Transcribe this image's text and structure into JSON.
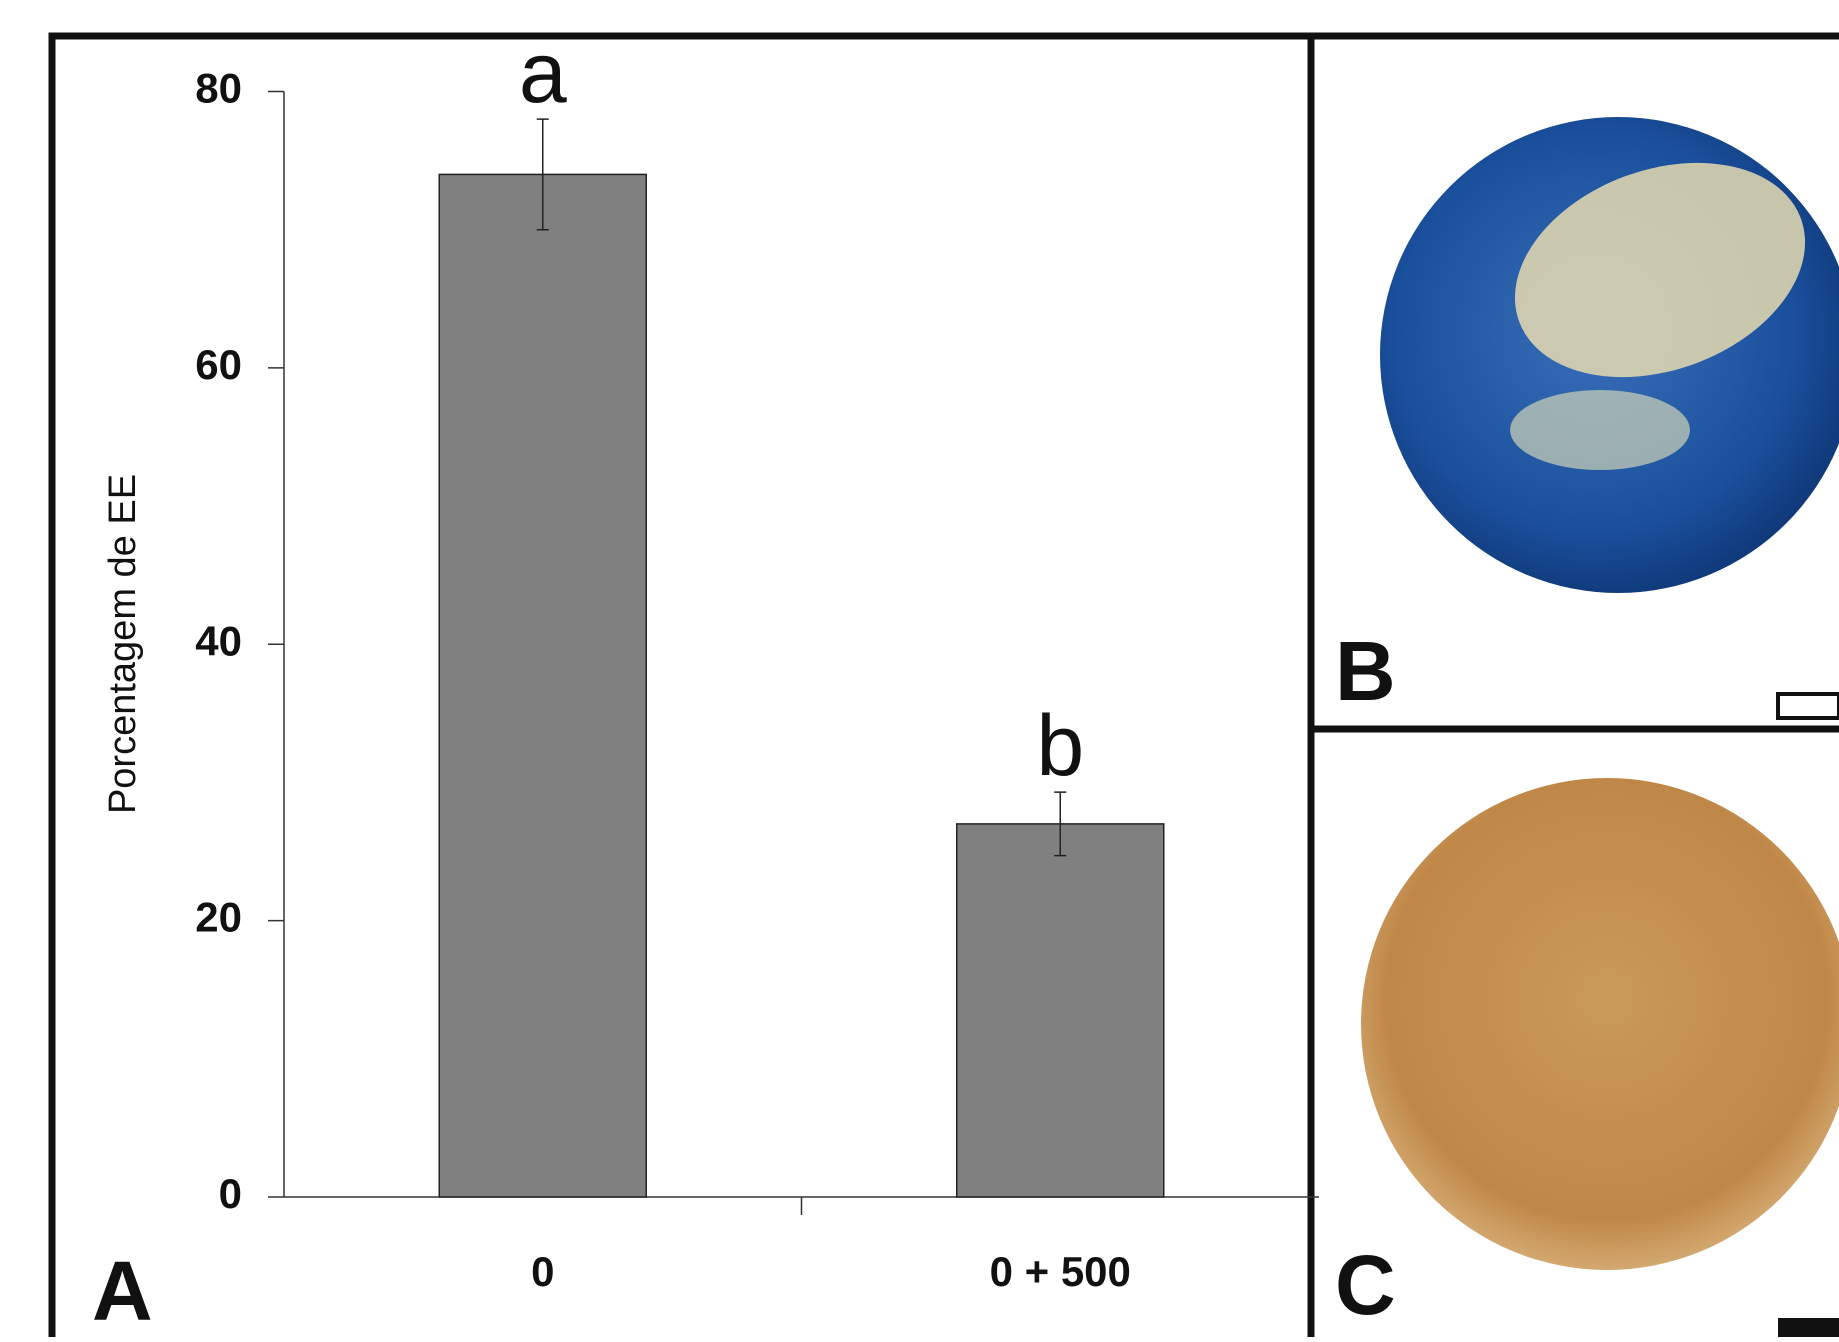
{
  "chart_data": {
    "type": "bar",
    "y_label": "Porcentagem de EE",
    "categories": [
      "0",
      "0 + 500"
    ],
    "values": [
      74,
      27
    ],
    "errors": [
      4,
      2.3
    ],
    "annotations": [
      "a",
      "b"
    ],
    "color": "#808080",
    "ylim": [
      0,
      80
    ],
    "yticks": [
      0,
      20,
      40,
      60,
      80
    ],
    "grid": false
  },
  "panels": [
    "A",
    "B",
    "C"
  ]
}
